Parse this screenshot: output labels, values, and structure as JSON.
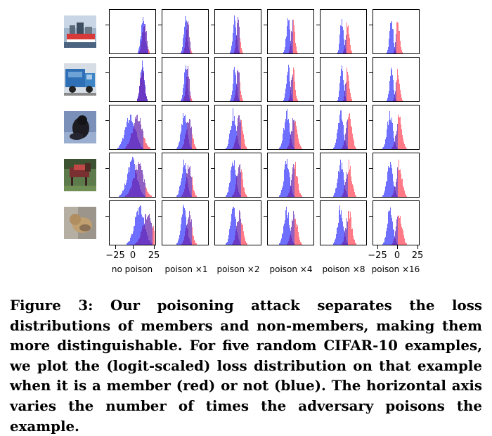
{
  "figure": {
    "column_labels": [
      "no poison",
      "poison ×1",
      "poison ×2",
      "poison ×4",
      "poison ×8",
      "poison ×16"
    ],
    "x_ticks_left": [
      "−25",
      "0",
      "25"
    ],
    "x_ticks_right": [
      "−25",
      "0",
      "25"
    ],
    "thumbnails": [
      "ship-image",
      "truck-image",
      "dog-image",
      "horse-image",
      "cat-image"
    ],
    "colors": {
      "member": "#ff4d5e",
      "non_member": "#4a4aff",
      "overlap": "#6a2ab0"
    }
  },
  "caption": {
    "label": "Figure 3:",
    "text": "Our poisoning attack separates the loss distributions of members and non-members, making them more distinguishable. For five random CIFAR-10 examples, we plot the (logit-scaled) loss distribution on that example when it is a member (red) or not (blue). The horizontal axis varies the number of times the adversary poisons the example."
  }
}
